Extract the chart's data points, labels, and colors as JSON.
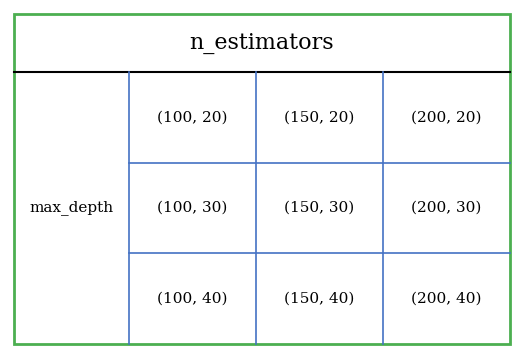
{
  "n_estimators": [
    100,
    150,
    200
  ],
  "max_depth": [
    20,
    30,
    40
  ],
  "title": "n_estimators",
  "row_label": "max_depth",
  "outer_border_color": "#4caf50",
  "inner_line_color": "#4472c4",
  "header_border_color": "#000000",
  "cell_text_color": "#000000",
  "label_text_color": "#000000",
  "background_color": "#ffffff",
  "title_fontsize": 16,
  "cell_fontsize": 11,
  "label_fontsize": 11,
  "outer_linewidth": 2.0,
  "inner_linewidth": 1.2,
  "header_linewidth": 1.5
}
